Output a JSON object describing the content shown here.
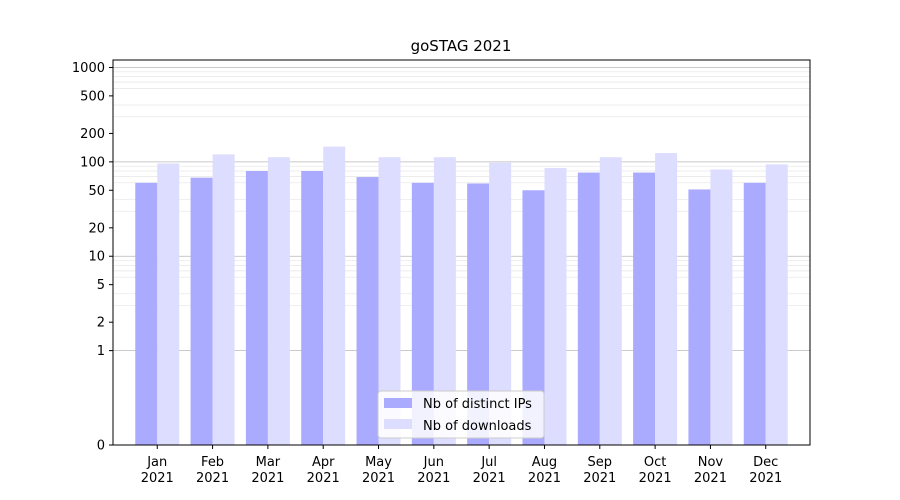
{
  "chart_data": {
    "type": "bar",
    "title": "goSTAG 2021",
    "xlabel": "",
    "ylabel": "",
    "yscale": "symlog",
    "ylim": [
      0,
      1200
    ],
    "yticks": [
      0,
      1,
      2,
      5,
      10,
      20,
      50,
      100,
      200,
      500,
      1000
    ],
    "ytick_labels": [
      "0",
      "1",
      "2",
      "5",
      "10",
      "20",
      "50",
      "100",
      "200",
      "500",
      "1000"
    ],
    "categories": [
      "Jan\n2021",
      "Feb\n2021",
      "Mar\n2021",
      "Apr\n2021",
      "May\n2021",
      "Jun\n2021",
      "Jul\n2021",
      "Aug\n2021",
      "Sep\n2021",
      "Oct\n2021",
      "Nov\n2021",
      "Dec\n2021"
    ],
    "grid": true,
    "legend_position": "bottom-center",
    "series": [
      {
        "name": "Nb of distinct IPs",
        "color": "#aaaaff",
        "values": [
          60,
          68,
          80,
          80,
          69,
          60,
          59,
          50,
          77,
          77,
          51,
          60
        ]
      },
      {
        "name": "Nb of downloads",
        "color": "#ddddff",
        "values": [
          96,
          120,
          112,
          145,
          112,
          112,
          98,
          86,
          112,
          124,
          83,
          94
        ]
      }
    ]
  }
}
